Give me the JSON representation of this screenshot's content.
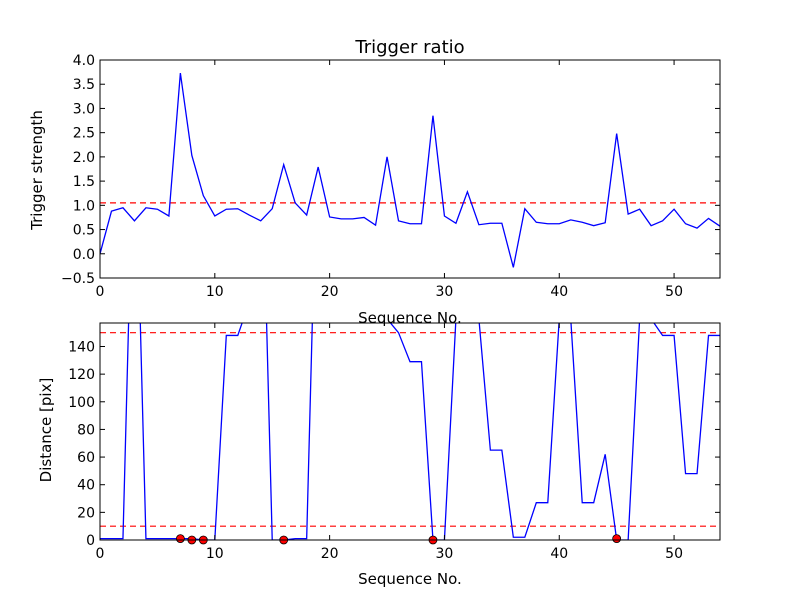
{
  "chart_data": [
    {
      "type": "line",
      "title": "Trigger ratio",
      "xlabel": "Sequence No.",
      "ylabel": "Trigger strength",
      "xlim": [
        0,
        54
      ],
      "ylim": [
        -0.5,
        4.0
      ],
      "xticks": [
        "0",
        "10",
        "20",
        "30",
        "40",
        "50"
      ],
      "xtick_values": [
        0,
        10,
        20,
        30,
        40,
        50
      ],
      "yticks": [
        "4.0",
        "3.5",
        "3.0",
        "2.5",
        "2.0",
        "1.5",
        "1.0",
        "0.5",
        "0.0",
        "−0.5"
      ],
      "ytick_values": [
        4.0,
        3.5,
        3.0,
        2.5,
        2.0,
        1.5,
        1.0,
        0.5,
        0.0,
        -0.5
      ],
      "grid": false,
      "line_color": "#0000ff",
      "threshold_color": "#ff0000",
      "thresholds": [
        1.05
      ],
      "series": [
        {
          "x": [
            0,
            1,
            2,
            3,
            4,
            5,
            6,
            7,
            8,
            9,
            10,
            11,
            12,
            13,
            14,
            15,
            16,
            17,
            18,
            19,
            20,
            21,
            22,
            23,
            24,
            25,
            26,
            27,
            28,
            29,
            30,
            31,
            32,
            33,
            34,
            35,
            36,
            37,
            38,
            39,
            40,
            41,
            42,
            43,
            44,
            45,
            46,
            47,
            48,
            49,
            50,
            51,
            52,
            53,
            54
          ],
          "y": [
            0.0,
            0.88,
            0.95,
            0.68,
            0.95,
            0.92,
            0.78,
            3.73,
            2.03,
            1.2,
            0.78,
            0.92,
            0.93,
            0.8,
            0.68,
            0.93,
            1.84,
            1.05,
            0.8,
            1.79,
            0.76,
            0.72,
            0.72,
            0.75,
            0.59,
            2.0,
            0.68,
            0.62,
            0.62,
            2.85,
            0.78,
            0.63,
            1.28,
            0.6,
            0.63,
            0.63,
            -0.28,
            0.93,
            0.65,
            0.62,
            0.62,
            0.7,
            0.65,
            0.58,
            0.64,
            2.48,
            0.82,
            0.92,
            0.58,
            0.68,
            0.92,
            0.62,
            0.53,
            0.73,
            0.57
          ]
        }
      ]
    },
    {
      "type": "line",
      "title": "",
      "xlabel": "Sequence No.",
      "ylabel": "Distance [pix]",
      "xlim": [
        0,
        54
      ],
      "ylim": [
        0,
        157
      ],
      "xticks": [
        "0",
        "10",
        "20",
        "30",
        "40",
        "50"
      ],
      "xtick_values": [
        0,
        10,
        20,
        30,
        40,
        50
      ],
      "yticks": [
        "140",
        "120",
        "100",
        "80",
        "60",
        "40",
        "20",
        "0"
      ],
      "ytick_values": [
        140,
        120,
        100,
        80,
        60,
        40,
        20,
        0
      ],
      "grid": false,
      "line_color": "#0000ff",
      "threshold_color": "#ff0000",
      "marker_color": "#ff0000",
      "thresholds": [
        150,
        10
      ],
      "series": [
        {
          "x": [
            0,
            1,
            2,
            2.5,
            3,
            3.5,
            4,
            5,
            6,
            7,
            8,
            9,
            10,
            11,
            12,
            12.5,
            13,
            14,
            14.5,
            15,
            16,
            17,
            18,
            18.5,
            19,
            20,
            21,
            22,
            23,
            24,
            25,
            26,
            27,
            28,
            29,
            30,
            31,
            32,
            33,
            34,
            35,
            36,
            37,
            38,
            39,
            40,
            41,
            42,
            43,
            44,
            45,
            46,
            47,
            48,
            49,
            50,
            51,
            52,
            53,
            54
          ],
          "y": [
            1,
            1,
            1,
            160,
            160,
            160,
            1,
            1,
            1,
            1,
            1,
            0,
            0,
            148,
            148,
            160,
            160,
            160,
            160,
            0,
            0,
            1,
            1,
            160,
            160,
            160,
            160,
            160,
            160,
            160,
            160,
            150,
            129,
            129,
            0,
            0,
            160,
            160,
            160,
            65,
            65,
            2,
            2,
            27,
            27,
            160,
            160,
            27,
            27,
            62,
            0,
            0,
            160,
            160,
            148,
            148,
            48,
            48,
            148,
            148
          ]
        }
      ],
      "markers": {
        "x": [
          7,
          8,
          9,
          16,
          29,
          45
        ],
        "y": [
          1,
          0,
          0,
          0,
          0,
          1
        ]
      }
    }
  ]
}
